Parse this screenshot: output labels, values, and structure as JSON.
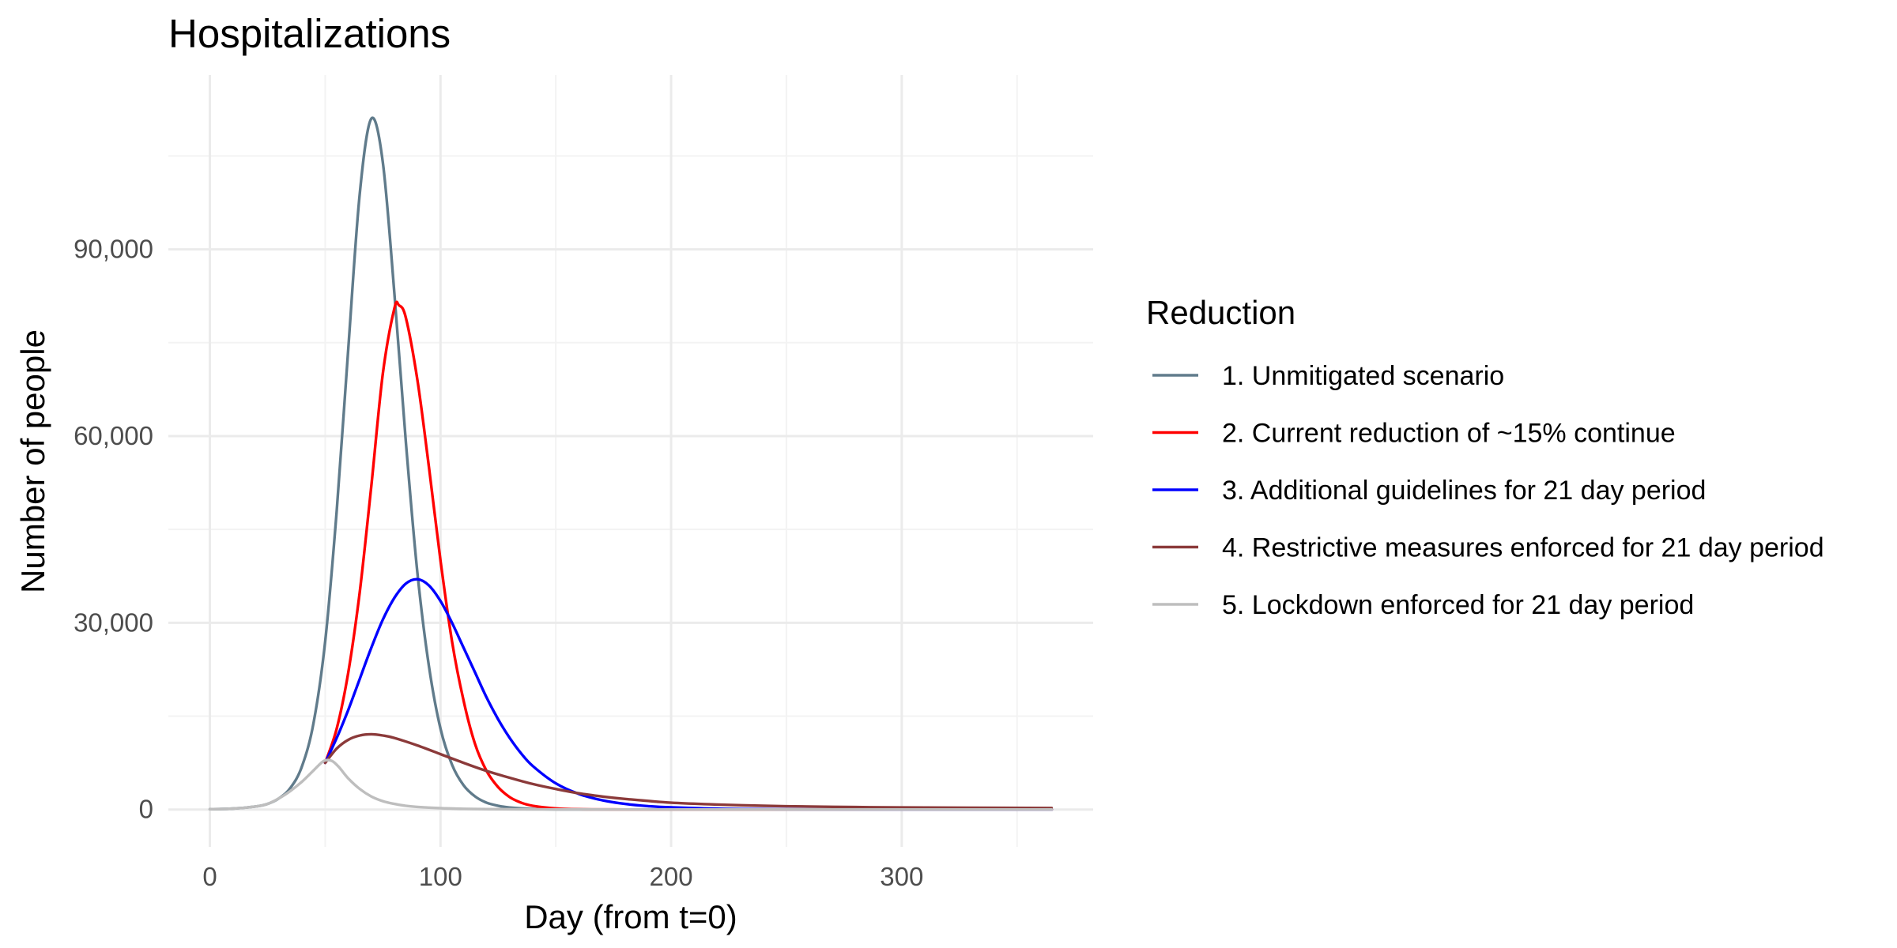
{
  "chart_data": {
    "type": "line",
    "title": "Hospitalizations",
    "xlabel": "Day (from t=0)",
    "ylabel": "Number of people",
    "xlim": [
      -18,
      383
    ],
    "ylim": [
      -6000,
      118000
    ],
    "x_ticks": [
      0,
      100,
      200,
      300
    ],
    "x_tick_labels": [
      "0",
      "100",
      "200",
      "300"
    ],
    "x_minor_ticks": [
      50,
      150,
      250,
      350
    ],
    "y_ticks": [
      0,
      30000,
      60000,
      90000
    ],
    "y_tick_labels": [
      "0",
      "30,000",
      "60,000",
      "90,000"
    ],
    "y_minor_ticks": [
      15000,
      45000,
      75000,
      105000
    ],
    "grid": true,
    "legend": {
      "title": "Reduction",
      "position": "right"
    },
    "series": [
      {
        "name": "1. Unmitigated scenario",
        "color": "#607B8B",
        "x": [
          0,
          10,
          20,
          25,
          30,
          35,
          40,
          45,
          50,
          55,
          60,
          65,
          70,
          75,
          80,
          85,
          90,
          95,
          100,
          105,
          110,
          115,
          120,
          125,
          130,
          140,
          150,
          160,
          180,
          200,
          365
        ],
        "y": [
          50,
          150,
          500,
          900,
          1800,
          3500,
          7000,
          14000,
          27000,
          48000,
          74000,
          99000,
          111000,
          104000,
          83000,
          59000,
          38000,
          23000,
          13000,
          7200,
          3900,
          2100,
          1100,
          600,
          320,
          100,
          30,
          10,
          2,
          0,
          0
        ]
      },
      {
        "name": "2. Current reduction of ~15% continue",
        "color": "#FF0000",
        "x": [
          50,
          55,
          60,
          65,
          70,
          75,
          80,
          82,
          85,
          90,
          95,
          100,
          105,
          110,
          115,
          120,
          125,
          130,
          135,
          140,
          150,
          160,
          180,
          200,
          365
        ],
        "y": [
          7500,
          13000,
          22000,
          35000,
          52000,
          70000,
          80500,
          81000,
          79000,
          69000,
          55000,
          40000,
          27000,
          17500,
          10500,
          6200,
          3600,
          2000,
          1100,
          600,
          180,
          50,
          5,
          0,
          0
        ]
      },
      {
        "name": "3. Additional guidelines for 21 day period",
        "color": "#0000FF",
        "x": [
          50,
          55,
          60,
          65,
          70,
          75,
          80,
          85,
          90,
          95,
          100,
          105,
          110,
          115,
          120,
          125,
          130,
          135,
          140,
          150,
          160,
          170,
          180,
          190,
          200,
          220,
          240,
          260,
          300,
          365
        ],
        "y": [
          7500,
          11500,
          16000,
          21000,
          26000,
          30500,
          34000,
          36300,
          37000,
          36000,
          33500,
          30000,
          26000,
          22000,
          18000,
          14500,
          11500,
          9000,
          7000,
          4200,
          2500,
          1500,
          900,
          550,
          340,
          130,
          50,
          20,
          5,
          0
        ]
      },
      {
        "name": "4. Restrictive measures enforced for 21 day period",
        "color": "#8B3A3A",
        "x": [
          50,
          55,
          60,
          65,
          70,
          75,
          80,
          90,
          100,
          110,
          120,
          130,
          140,
          150,
          160,
          170,
          180,
          200,
          220,
          240,
          260,
          280,
          300,
          330,
          365
        ],
        "y": [
          7500,
          9800,
          11200,
          11900,
          12100,
          11900,
          11500,
          10300,
          8900,
          7500,
          6200,
          5100,
          4100,
          3300,
          2600,
          2100,
          1700,
          1100,
          800,
          600,
          480,
          400,
          330,
          280,
          250
        ]
      },
      {
        "name": "5. Lockdown enforced for 21 day period",
        "color": "#BEBEBE",
        "x": [
          0,
          10,
          20,
          25,
          30,
          35,
          40,
          45,
          48,
          50,
          53,
          56,
          60,
          65,
          70,
          75,
          80,
          85,
          90,
          100,
          110,
          120,
          140,
          160,
          200,
          365
        ],
        "y": [
          50,
          150,
          500,
          900,
          1800,
          3000,
          4500,
          6300,
          7400,
          7900,
          7800,
          6800,
          5000,
          3300,
          2100,
          1350,
          900,
          600,
          420,
          220,
          120,
          70,
          25,
          10,
          2,
          0
        ]
      }
    ]
  }
}
